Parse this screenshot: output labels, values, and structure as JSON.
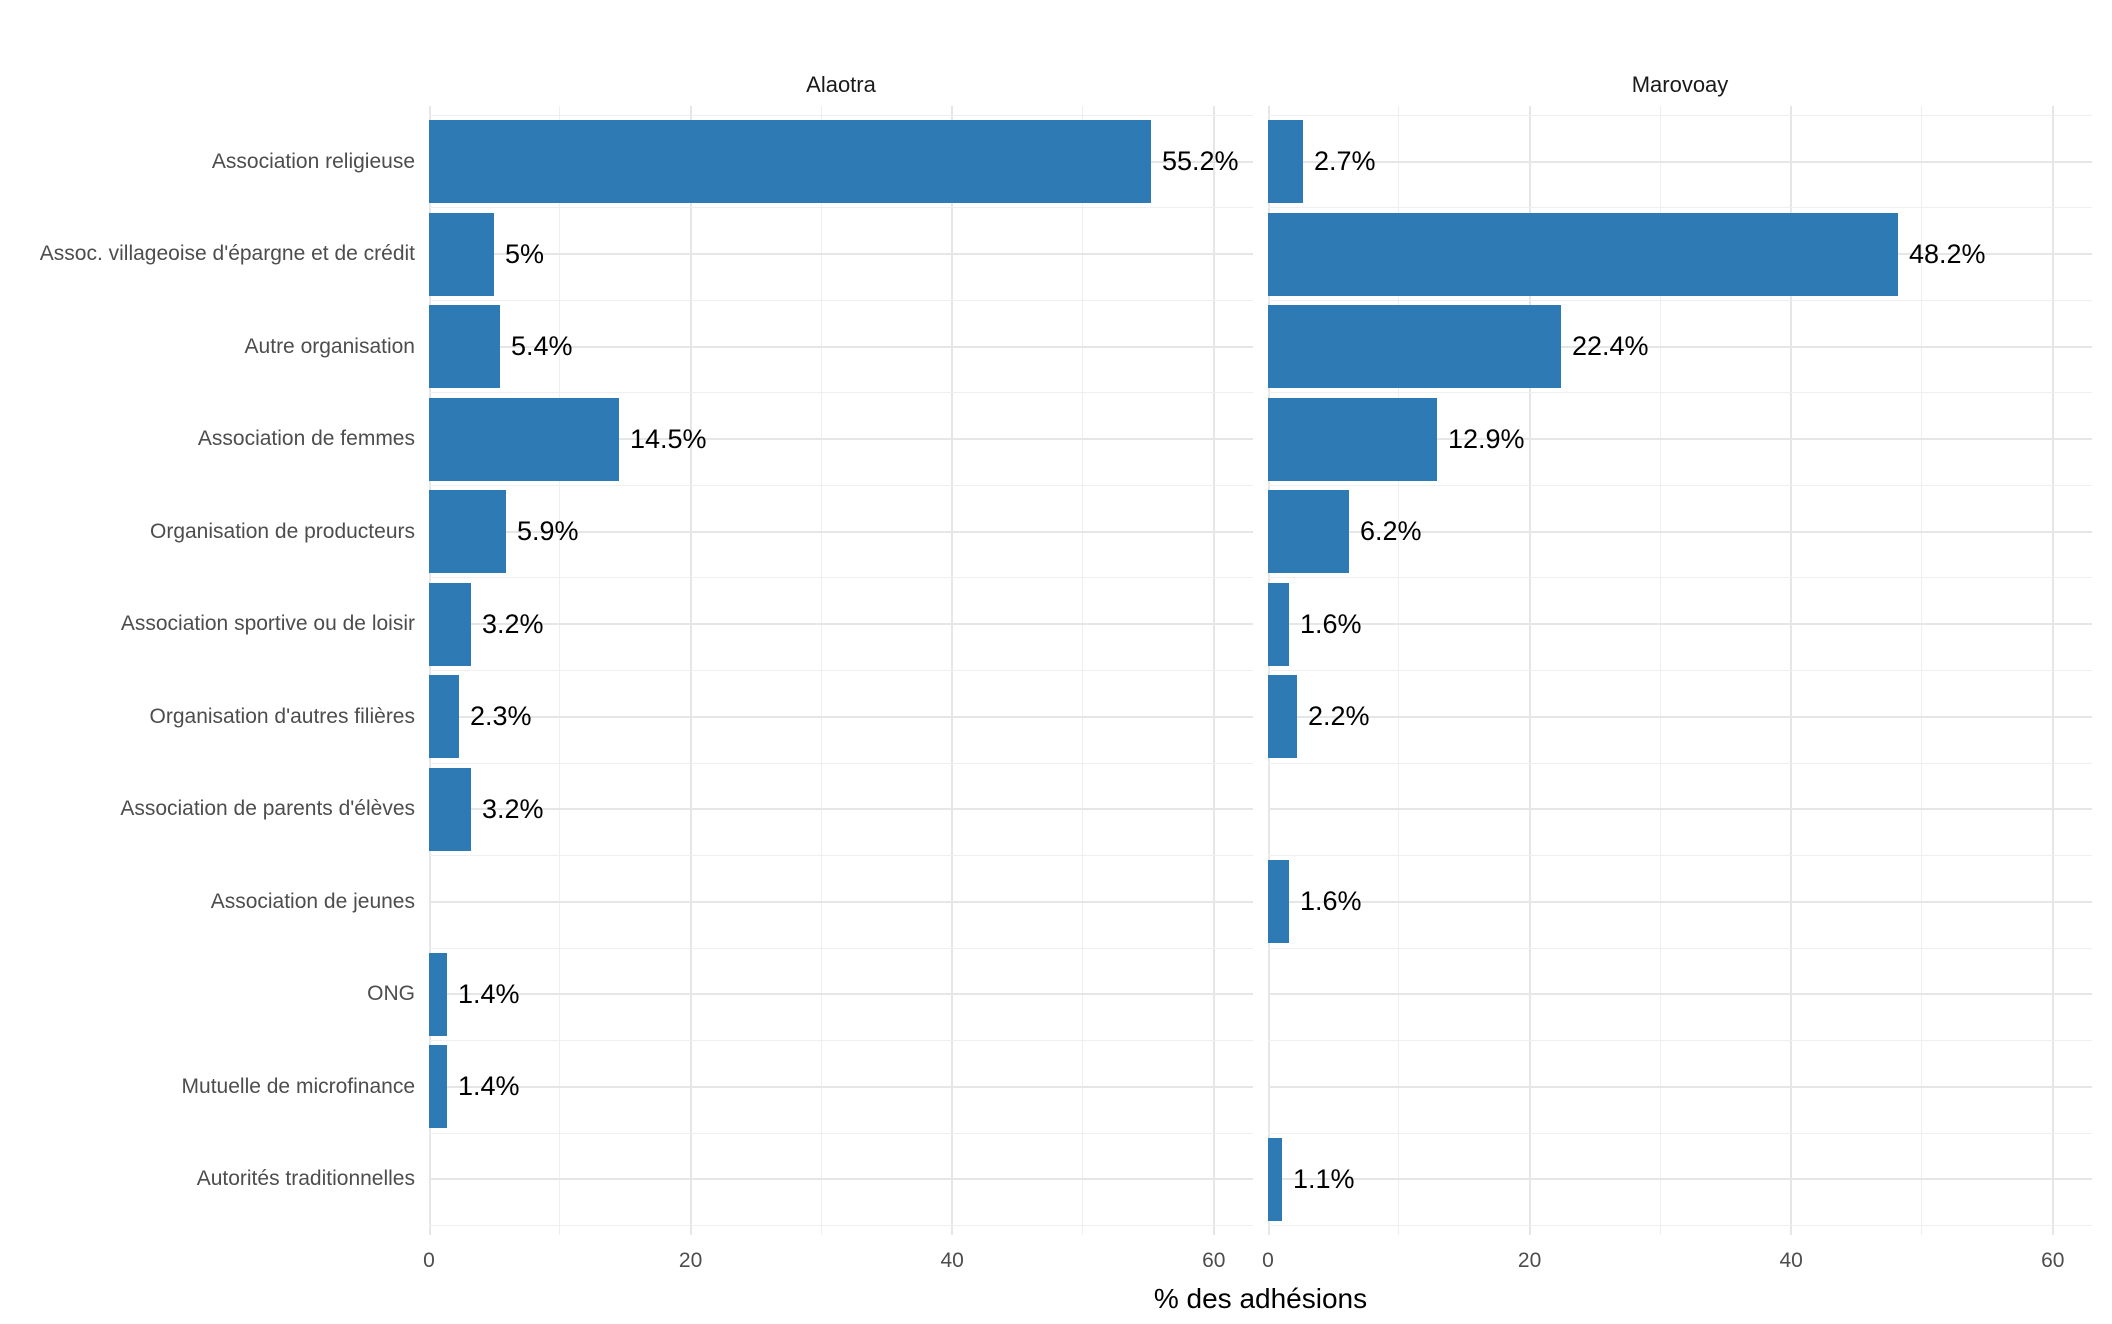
{
  "chart_data": {
    "type": "bar",
    "orientation": "horizontal",
    "xlabel": "% des adhésions",
    "categories": [
      "Association religieuse",
      "Assoc. villageoise d'épargne et de crédit",
      "Autre organisation",
      "Association de femmes",
      "Organisation de producteurs",
      "Association sportive ou de loisir",
      "Organisation d'autres filières",
      "Association de parents d'élèves",
      "Association de jeunes",
      "ONG",
      "Mutuelle de microfinance",
      "Autorités traditionnelles"
    ],
    "facets": [
      {
        "name": "Alaotra",
        "values": [
          55.2,
          5,
          5.4,
          14.5,
          5.9,
          3.2,
          2.3,
          3.2,
          null,
          1.4,
          1.4,
          null
        ],
        "labels": [
          "55.2%",
          "5%",
          "5.4%",
          "14.5%",
          "5.9%",
          "3.2%",
          "2.3%",
          "3.2%",
          "",
          "1.4%",
          "1.4%",
          ""
        ]
      },
      {
        "name": "Marovoay",
        "values": [
          2.7,
          48.2,
          22.4,
          12.9,
          6.2,
          1.6,
          2.2,
          null,
          1.6,
          null,
          null,
          1.1
        ],
        "labels": [
          "2.7%",
          "48.2%",
          "22.4%",
          "12.9%",
          "6.2%",
          "1.6%",
          "2.2%",
          "",
          "1.6%",
          "",
          "",
          "1.1%"
        ]
      }
    ],
    "x_ticks": [
      0,
      20,
      40,
      60
    ],
    "x_minor_ticks": [
      10,
      30,
      50
    ],
    "xlim": [
      0,
      63
    ],
    "grid": true,
    "legend_position": "none"
  },
  "colors": {
    "bar": "#2d7ab5",
    "grid_major": "#e6e6e6",
    "grid_minor": "#efefef",
    "axis_text": "#4d4d4d",
    "value_text": "#000000",
    "strip_text": "#1a1a1a",
    "background": "#ffffff"
  }
}
